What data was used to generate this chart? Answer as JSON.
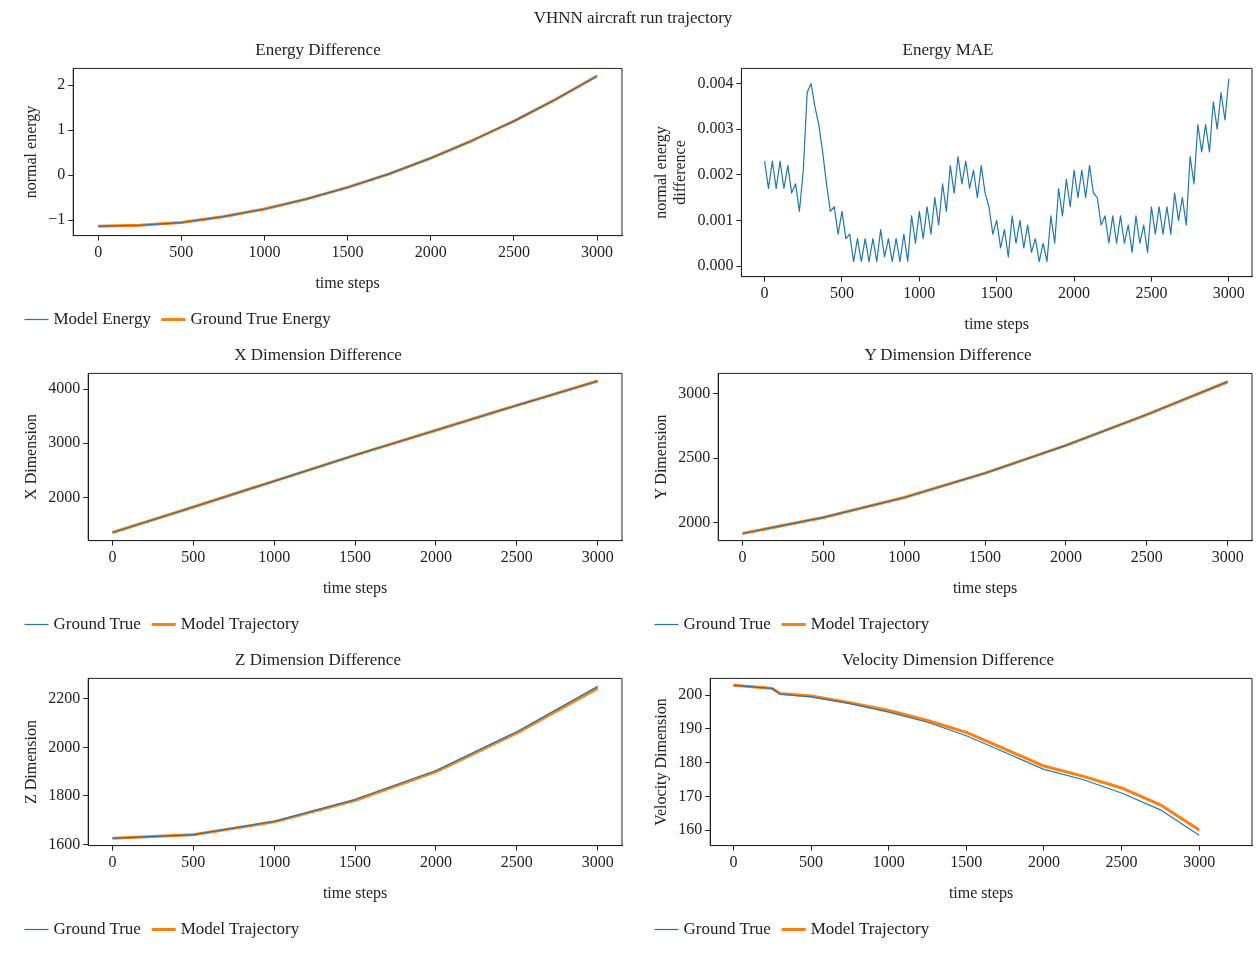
{
  "chart_data": [
    {
      "type": "line",
      "title": "Energy Difference",
      "xlabel": "time steps",
      "ylabel": "normal energy",
      "annotations": [
        "VHNN aircraft run trajectory"
      ],
      "x": [
        0,
        250,
        500,
        750,
        1000,
        1250,
        1500,
        1750,
        2000,
        2250,
        2500,
        2750,
        3000
      ],
      "xlim": [
        -150,
        3150
      ],
      "xticks": [
        0,
        500,
        1000,
        1500,
        2000,
        2500,
        3000
      ],
      "ylim": [
        -1.34,
        2.37
      ],
      "yticks": [
        {
          "value": -1,
          "label": "−1"
        },
        0,
        1,
        2
      ],
      "legend": "bottom",
      "marker": "none",
      "series": [
        {
          "name": "Model Energy",
          "color": "#1f77b4",
          "values": [
            -1.13,
            -1.11,
            -1.05,
            -0.92,
            -0.75,
            -0.53,
            -0.27,
            0.03,
            0.38,
            0.77,
            1.2,
            1.68,
            2.2
          ]
        },
        {
          "name": "Ground True Energy",
          "color": "#ff7f0e",
          "values": [
            -1.13,
            -1.11,
            -1.05,
            -0.92,
            -0.75,
            -0.53,
            -0.27,
            0.03,
            0.38,
            0.77,
            1.2,
            1.68,
            2.2
          ]
        }
      ]
    },
    {
      "type": "line",
      "title": "Energy MAE",
      "xlabel": "time steps",
      "ylabel": "normal energy\ndifference",
      "x": [
        0,
        25,
        50,
        75,
        100,
        125,
        150,
        175,
        200,
        225,
        250,
        275,
        300,
        325,
        350,
        375,
        400,
        425,
        450,
        475,
        500,
        525,
        550,
        575,
        600,
        625,
        650,
        675,
        700,
        725,
        750,
        775,
        800,
        825,
        850,
        875,
        900,
        925,
        950,
        975,
        1000,
        1025,
        1050,
        1075,
        1100,
        1125,
        1150,
        1175,
        1200,
        1225,
        1250,
        1275,
        1300,
        1325,
        1350,
        1375,
        1400,
        1425,
        1450,
        1475,
        1500,
        1525,
        1550,
        1575,
        1600,
        1625,
        1650,
        1675,
        1700,
        1725,
        1750,
        1775,
        1800,
        1825,
        1850,
        1875,
        1900,
        1925,
        1950,
        1975,
        2000,
        2025,
        2050,
        2075,
        2100,
        2125,
        2150,
        2175,
        2200,
        2225,
        2250,
        2275,
        2300,
        2325,
        2350,
        2375,
        2400,
        2425,
        2450,
        2475,
        2500,
        2525,
        2550,
        2575,
        2600,
        2625,
        2650,
        2675,
        2700,
        2725,
        2750,
        2775,
        2800,
        2825,
        2850,
        2875,
        2900,
        2925,
        2950,
        2975,
        3000
      ],
      "xlim": [
        -150,
        3150
      ],
      "xticks": [
        0,
        500,
        1000,
        1500,
        2000,
        2500,
        3000
      ],
      "ylim": [
        -0.00023,
        0.00433
      ],
      "yticks": [
        {
          "value": 0,
          "label": "0.000"
        },
        {
          "value": 0.001,
          "label": "0.001"
        },
        {
          "value": 0.002,
          "label": "0.002"
        },
        {
          "value": 0.003,
          "label": "0.003"
        },
        {
          "value": 0.004,
          "label": "0.004"
        }
      ],
      "marker": "none",
      "series": [
        {
          "color": "#1f77b4",
          "values": [
            0.0023,
            0.0017,
            0.0023,
            0.0017,
            0.0023,
            0.0017,
            0.0022,
            0.0016,
            0.0018,
            0.0012,
            0.0021,
            0.0038,
            0.004,
            0.0035,
            0.0031,
            0.0025,
            0.0018,
            0.0012,
            0.0013,
            0.0007,
            0.0012,
            0.0006,
            0.0007,
            0.0001,
            0.0006,
            0.0001,
            0.0006,
            0.0001,
            0.0006,
            0.0001,
            0.0008,
            0.0002,
            0.0006,
            0.0001,
            0.0006,
            0.0001,
            0.0007,
            0.0001,
            0.0011,
            0.0005,
            0.0012,
            0.0006,
            0.0013,
            0.0007,
            0.0015,
            0.0009,
            0.0018,
            0.0012,
            0.0022,
            0.0016,
            0.0024,
            0.0018,
            0.0023,
            0.0017,
            0.0021,
            0.0015,
            0.0022,
            0.0016,
            0.0013,
            0.0007,
            0.001,
            0.0004,
            0.0008,
            0.0002,
            0.0011,
            0.0005,
            0.001,
            0.0004,
            0.0009,
            0.0003,
            0.0006,
            0.0001,
            0.0005,
            0.0001,
            0.0011,
            0.0005,
            0.0017,
            0.0011,
            0.0019,
            0.0013,
            0.0021,
            0.0015,
            0.0021,
            0.0015,
            0.0022,
            0.0016,
            0.0015,
            0.0009,
            0.0011,
            0.0005,
            0.0011,
            0.0005,
            0.0011,
            0.0005,
            0.0009,
            0.0003,
            0.0011,
            0.0005,
            0.0009,
            0.0003,
            0.0013,
            0.0007,
            0.0013,
            0.0007,
            0.0013,
            0.0007,
            0.0016,
            0.001,
            0.0015,
            0.0009,
            0.0024,
            0.0018,
            0.0031,
            0.0025,
            0.0031,
            0.0025,
            0.0036,
            0.003,
            0.0038,
            0.0032,
            0.0041
          ]
        }
      ]
    },
    {
      "type": "line",
      "title": "X Dimension Difference",
      "xlabel": "time steps",
      "ylabel": "X Dimension",
      "x": [
        0,
        500,
        1000,
        1500,
        2000,
        2500,
        3000
      ],
      "xlim": [
        -150,
        3150
      ],
      "xticks": [
        0,
        500,
        1000,
        1500,
        2000,
        2500,
        3000
      ],
      "ylim": [
        1200,
        4290
      ],
      "yticks": [
        2000,
        3000,
        4000
      ],
      "legend": "bottom",
      "marker": "none",
      "series": [
        {
          "name": "Ground True",
          "color": "#1f77b4",
          "values": [
            1350,
            1820,
            2300,
            2780,
            3240,
            3700,
            4150
          ]
        },
        {
          "name": "Model Trajectory",
          "color": "#ff7f0e",
          "values": [
            1350,
            1820,
            2300,
            2780,
            3240,
            3700,
            4150
          ]
        }
      ]
    },
    {
      "type": "line",
      "title": "Y Dimension Difference",
      "xlabel": "time steps",
      "ylabel": "Y Dimension",
      "x": [
        0,
        500,
        1000,
        1500,
        2000,
        2500,
        3000
      ],
      "xlim": [
        -150,
        3150
      ],
      "xticks": [
        0,
        500,
        1000,
        1500,
        2000,
        2500,
        3000
      ],
      "ylim": [
        1860,
        3160
      ],
      "yticks": [
        2000,
        2500,
        3000
      ],
      "legend": "bottom",
      "marker": "none",
      "series": [
        {
          "name": "Ground True",
          "color": "#1f77b4",
          "values": [
            1915,
            2040,
            2195,
            2385,
            2600,
            2840,
            3095
          ]
        },
        {
          "name": "Model Trajectory",
          "color": "#ff7f0e",
          "values": [
            1915,
            2040,
            2195,
            2385,
            2600,
            2840,
            3095
          ]
        }
      ]
    },
    {
      "type": "line",
      "title": "Z Dimension Difference",
      "xlabel": "time steps",
      "ylabel": "Z Dimension",
      "x": [
        0,
        500,
        1000,
        1500,
        2000,
        2500,
        3000
      ],
      "xlim": [
        -150,
        3150
      ],
      "xticks": [
        0,
        500,
        1000,
        1500,
        2000,
        2500,
        3000
      ],
      "ylim": [
        1595,
        2285
      ],
      "yticks": [
        1600,
        1800,
        2000,
        2200
      ],
      "legend": "bottom",
      "marker": "none",
      "series": [
        {
          "name": "Ground True",
          "color": "#1f77b4",
          "values": [
            1625,
            1640,
            1695,
            1785,
            1905,
            2065,
            2252
          ]
        },
        {
          "name": "Model Trajectory",
          "color": "#ff7f0e",
          "values": [
            1625,
            1640,
            1693,
            1782,
            1900,
            2060,
            2245
          ]
        }
      ]
    },
    {
      "type": "line",
      "title": "Velocity Dimension Difference",
      "xlabel": "time steps",
      "ylabel": "Velocity Dimension",
      "x": [
        0,
        250,
        300,
        500,
        750,
        1000,
        1250,
        1500,
        1750,
        2000,
        2250,
        2500,
        2750,
        3000
      ],
      "xlim": [
        -150,
        3340
      ],
      "xticks": [
        0,
        500,
        1000,
        1500,
        2000,
        2500,
        3000
      ],
      "ylim": [
        155.4,
        205
      ],
      "yticks": [
        160,
        170,
        180,
        190,
        200
      ],
      "legend": "bottom",
      "marker": "none",
      "series": [
        {
          "name": "Ground True",
          "color": "#1f77b4",
          "values": [
            203,
            202,
            200.3,
            199.5,
            197.5,
            195,
            192,
            188,
            183,
            178,
            175,
            171,
            166,
            158.5
          ]
        },
        {
          "name": "Model Trajectory",
          "color": "#ff7f0e",
          "values": [
            203,
            202,
            200.5,
            199.8,
            197.8,
            195.5,
            192.5,
            189,
            184,
            179,
            176,
            172.5,
            167.5,
            160
          ]
        }
      ]
    }
  ]
}
